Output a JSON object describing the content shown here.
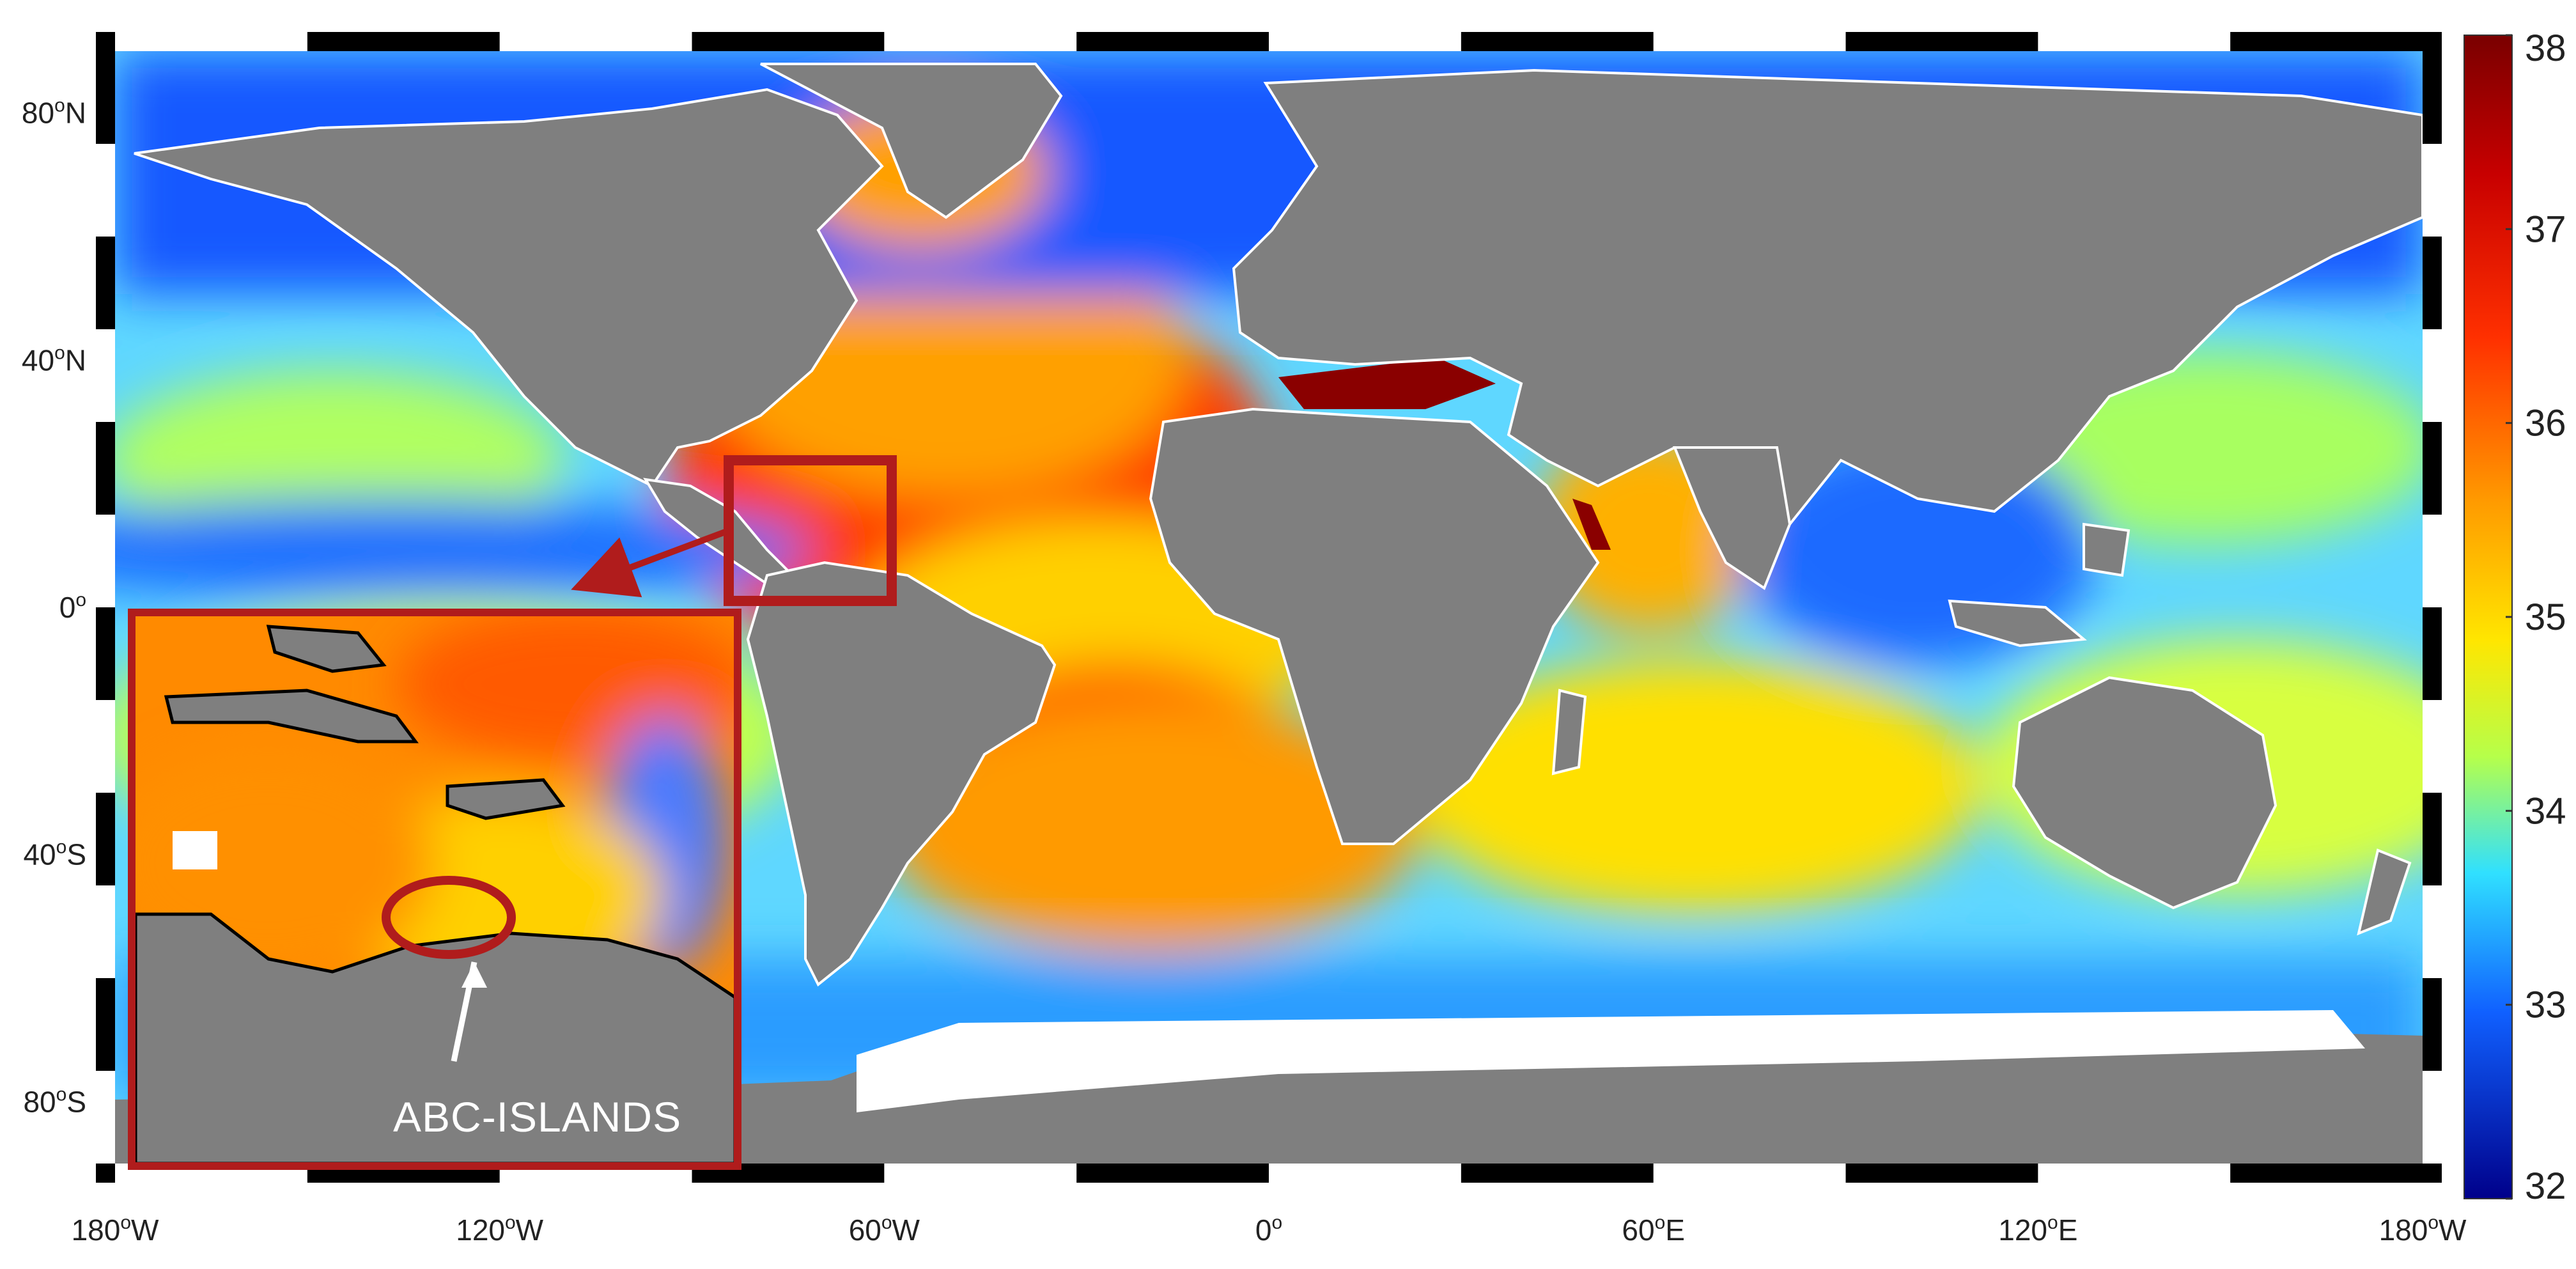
{
  "map": {
    "lon_ticks": [
      {
        "deg": "180",
        "hemi": "W",
        "lon": -180
      },
      {
        "deg": "120",
        "hemi": "W",
        "lon": -120
      },
      {
        "deg": "60",
        "hemi": "W",
        "lon": -60
      },
      {
        "deg": "0",
        "hemi": "",
        "lon": 0
      },
      {
        "deg": "60",
        "hemi": "E",
        "lon": 60
      },
      {
        "deg": "120",
        "hemi": "E",
        "lon": 120
      },
      {
        "deg": "180",
        "hemi": "W",
        "lon": 180
      }
    ],
    "lat_ticks": [
      {
        "deg": "80",
        "hemi": "N",
        "lat": 80
      },
      {
        "deg": "40",
        "hemi": "N",
        "lat": 40
      },
      {
        "deg": "0",
        "hemi": "",
        "lat": 0
      },
      {
        "deg": "40",
        "hemi": "S",
        "lat": -40
      },
      {
        "deg": "80",
        "hemi": "S",
        "lat": -80
      }
    ],
    "lon_range": [
      -180,
      180
    ],
    "lat_range": [
      -90,
      90
    ],
    "colors": {
      "land": "#7f7f7f",
      "ice": "#ffffff",
      "callout": "#b01c1c"
    },
    "highlight_box": {
      "lon_min": -78,
      "lon_max": -56,
      "lat_min": 4,
      "lat_max": 27
    },
    "inset_label": "ABC-ISLANDS"
  },
  "colorbar": {
    "ticks": [
      38,
      37,
      36,
      35,
      34,
      33,
      32
    ],
    "range": [
      32,
      38
    ]
  }
}
